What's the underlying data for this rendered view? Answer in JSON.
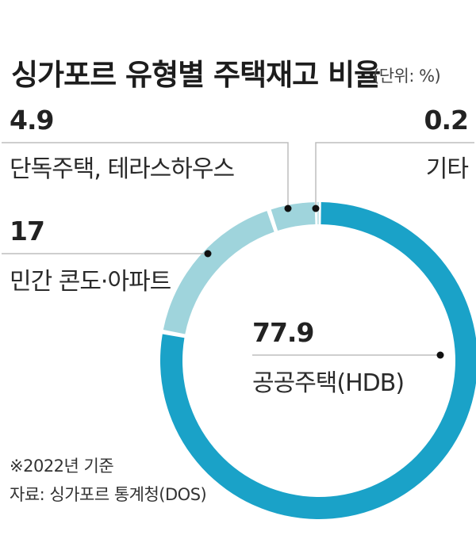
{
  "chart_data": {
    "type": "pie",
    "title": "싱가포르 유형별 주택재고 비율",
    "unit_label": "(단위: %)",
    "slices": [
      {
        "label": "공공주택(HDB)",
        "value_text": "77.9",
        "value": 77.9,
        "color": "#1aa2c8"
      },
      {
        "label": "민간 콘도·아파트",
        "value_text": "17",
        "value": 17,
        "color": "#9fd4dc"
      },
      {
        "label": "단독주택, 테라스하우스",
        "value_text": "4.9",
        "value": 4.9,
        "color": "#9fd4dc"
      },
      {
        "label": "기타",
        "value_text": "0.2",
        "value": 0.2,
        "color": "#c9e6ea"
      }
    ]
  },
  "notes": {
    "base_year": "※2022년 기준",
    "source": "자료: 싱가포르 통계청(DOS)"
  }
}
